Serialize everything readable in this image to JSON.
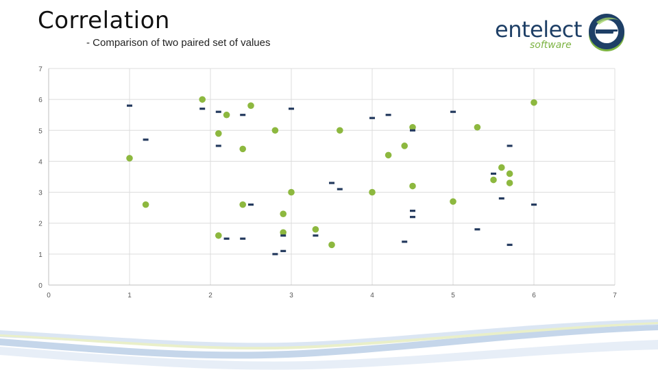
{
  "slide": {
    "title": "Correlation",
    "subtitle": "- Comparison of two paired set of values"
  },
  "logo": {
    "word": "entelect",
    "sub": "software",
    "colors": {
      "navy": "#1e3f66",
      "green": "#7cb342"
    }
  },
  "chart_data": {
    "type": "scatter",
    "xlim": [
      0,
      7
    ],
    "ylim": [
      0,
      7
    ],
    "x_ticks": [
      "0",
      "1",
      "2",
      "3",
      "4",
      "5",
      "6",
      "7"
    ],
    "y_ticks": [
      "0",
      "1",
      "2",
      "3",
      "4",
      "5",
      "6",
      "7"
    ],
    "grid": true,
    "series": [
      {
        "marker": "circle",
        "color": "#8db83f",
        "points": [
          [
            1.0,
            4.1
          ],
          [
            1.2,
            2.6
          ],
          [
            1.9,
            6.0
          ],
          [
            2.1,
            4.9
          ],
          [
            2.1,
            1.6
          ],
          [
            2.2,
            5.5
          ],
          [
            2.4,
            4.4
          ],
          [
            2.4,
            2.6
          ],
          [
            2.5,
            5.8
          ],
          [
            2.8,
            5.0
          ],
          [
            2.9,
            2.3
          ],
          [
            2.9,
            1.7
          ],
          [
            3.0,
            3.0
          ],
          [
            3.3,
            1.8
          ],
          [
            3.5,
            1.3
          ],
          [
            3.6,
            5.0
          ],
          [
            4.0,
            3.0
          ],
          [
            4.2,
            4.2
          ],
          [
            4.4,
            4.5
          ],
          [
            4.5,
            5.1
          ],
          [
            4.5,
            3.2
          ],
          [
            5.0,
            2.7
          ],
          [
            5.3,
            5.1
          ],
          [
            5.5,
            3.4
          ],
          [
            5.6,
            3.8
          ],
          [
            5.7,
            3.6
          ],
          [
            5.7,
            3.3
          ],
          [
            6.0,
            5.9
          ]
        ]
      },
      {
        "marker": "dash",
        "color": "#243a5e",
        "points": [
          [
            1.0,
            5.8
          ],
          [
            1.2,
            4.7
          ],
          [
            1.9,
            5.7
          ],
          [
            2.1,
            5.6
          ],
          [
            2.1,
            4.5
          ],
          [
            2.2,
            1.5
          ],
          [
            2.4,
            5.5
          ],
          [
            2.4,
            1.5
          ],
          [
            2.5,
            2.6
          ],
          [
            2.8,
            1.0
          ],
          [
            2.9,
            1.6
          ],
          [
            2.9,
            1.1
          ],
          [
            3.0,
            5.7
          ],
          [
            3.3,
            1.6
          ],
          [
            3.5,
            3.3
          ],
          [
            3.6,
            3.1
          ],
          [
            4.0,
            5.4
          ],
          [
            4.2,
            5.5
          ],
          [
            4.4,
            1.4
          ],
          [
            4.5,
            5.0
          ],
          [
            4.5,
            2.4
          ],
          [
            4.5,
            2.2
          ],
          [
            5.0,
            5.6
          ],
          [
            5.3,
            1.8
          ],
          [
            5.5,
            3.6
          ],
          [
            5.6,
            2.8
          ],
          [
            5.7,
            4.5
          ],
          [
            5.7,
            1.3
          ],
          [
            6.0,
            2.6
          ]
        ]
      }
    ]
  }
}
